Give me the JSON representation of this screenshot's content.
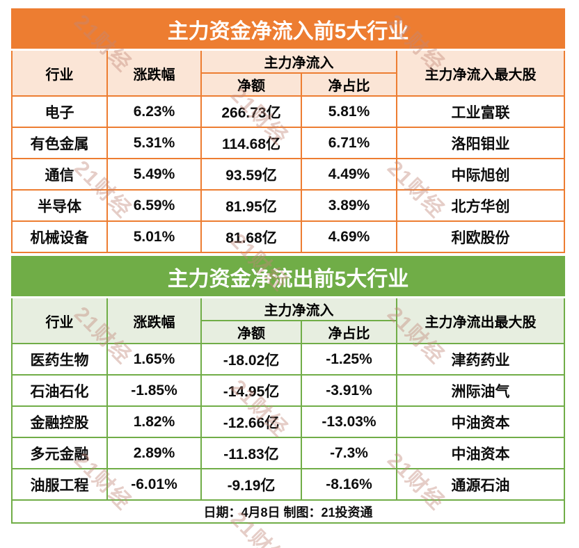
{
  "watermark": {
    "text": "21财经"
  },
  "footer": {
    "text": "日期：4月8日 制图：21投资通"
  },
  "colors": {
    "orange_accent": "#ED7D31",
    "orange_light": "#FBE5D6",
    "green_accent": "#70AD47",
    "green_light": "#E7EEE0"
  },
  "chart_data": [
    {
      "type": "table",
      "title": "主力资金净流入前5大行业",
      "header": {
        "industry": "行业",
        "change": "涨跌幅",
        "group": "主力净流入",
        "net": "净额",
        "ratio": "净占比",
        "top_stock": "主力净流入最大股"
      },
      "rows": [
        [
          "电子",
          "6.23%",
          "266.73亿",
          "5.81%",
          "工业富联"
        ],
        [
          "有色金属",
          "5.31%",
          "114.68亿",
          "6.71%",
          "洛阳钼业"
        ],
        [
          "通信",
          "5.49%",
          "93.59亿",
          "4.49%",
          "中际旭创"
        ],
        [
          "半导体",
          "6.59%",
          "81.95亿",
          "3.89%",
          "北方华创"
        ],
        [
          "机械设备",
          "5.01%",
          "81.68亿",
          "4.69%",
          "利欧股份"
        ]
      ]
    },
    {
      "type": "table",
      "title": "主力资金净流出前5大行业",
      "header": {
        "industry": "行业",
        "change": "涨跌幅",
        "group": "主力净流入",
        "net": "净额",
        "ratio": "净占比",
        "top_stock": "主力净流出最大股"
      },
      "rows": [
        [
          "医药生物",
          "1.65%",
          "-18.02亿",
          "-1.25%",
          "津药药业"
        ],
        [
          "石油石化",
          "-1.85%",
          "-14.95亿",
          "-3.91%",
          "洲际油气"
        ],
        [
          "金融控股",
          "1.82%",
          "-12.66亿",
          "-13.03%",
          "中油资本"
        ],
        [
          "多元金融",
          "2.89%",
          "-11.83亿",
          "-7.3%",
          "中油资本"
        ],
        [
          "油服工程",
          "-6.01%",
          "-9.19亿",
          "-8.16%",
          "通源石油"
        ]
      ]
    }
  ]
}
